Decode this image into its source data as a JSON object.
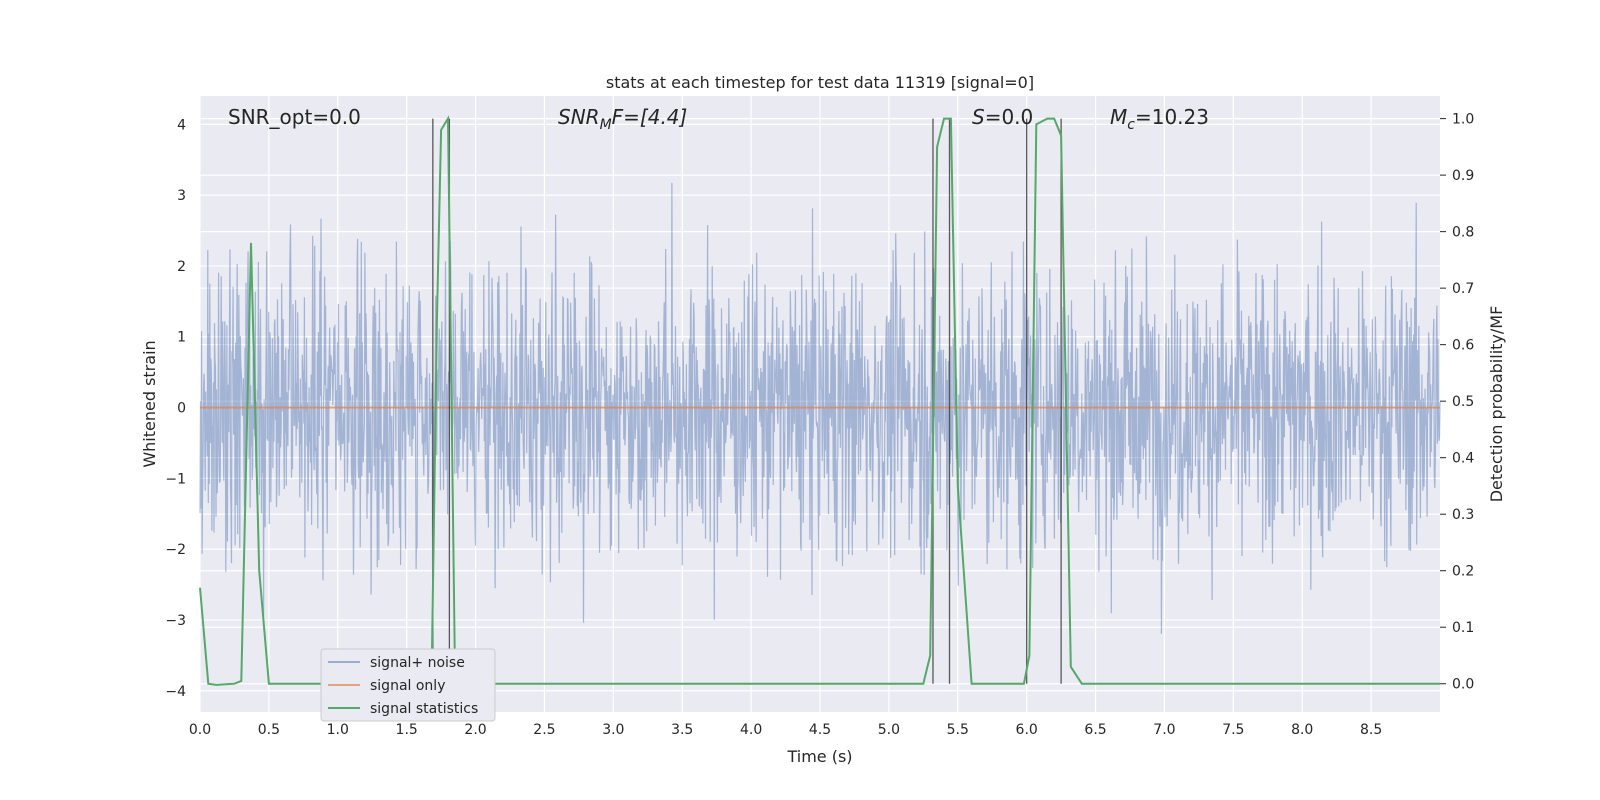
{
  "chart_data": {
    "type": "line",
    "title": "stats at each timestep for test data 11319 [signal=0]",
    "xlabel": "Time (s)",
    "ylabel_left": "Whitened strain",
    "ylabel_right": "Detection probability/MF",
    "xlim": [
      0.0,
      9.0
    ],
    "ylim_left": [
      -4.3,
      4.4
    ],
    "ylim_right": [
      -0.05,
      1.04
    ],
    "xticks": [
      "0.0",
      "0.5",
      "1.0",
      "1.5",
      "2.0",
      "2.5",
      "3.0",
      "3.5",
      "4.0",
      "4.5",
      "5.0",
      "5.5",
      "6.0",
      "6.5",
      "7.0",
      "7.5",
      "8.0",
      "8.5"
    ],
    "yticks_left": [
      "4",
      "3",
      "2",
      "1",
      "0",
      "−1",
      "−2",
      "−3",
      "−4"
    ],
    "yticks_right": [
      "1.0",
      "0.9",
      "0.8",
      "0.7",
      "0.6",
      "0.5",
      "0.4",
      "0.3",
      "0.2",
      "0.1",
      "0.0"
    ],
    "grid": true,
    "legend_position": "lower-left",
    "series": [
      {
        "name": "signal+ noise",
        "color": "#4c72b0",
        "axis": "left",
        "note": "dense whitened noise trace across full time range"
      },
      {
        "name": "signal only",
        "color": "#dd8452",
        "axis": "left",
        "x": [
          0.0,
          9.0
        ],
        "y": [
          0.0,
          0.0
        ]
      },
      {
        "name": "signal statistics",
        "color": "#55a868",
        "axis": "right",
        "x": [
          0.0,
          0.06,
          0.12,
          0.25,
          0.3,
          0.37,
          0.43,
          0.5,
          1.0,
          1.68,
          1.72,
          1.75,
          1.8,
          1.85,
          1.9,
          2.0,
          3.0,
          4.0,
          5.0,
          5.25,
          5.3,
          5.35,
          5.4,
          5.45,
          5.5,
          5.6,
          5.98,
          6.02,
          6.07,
          6.15,
          6.2,
          6.25,
          6.32,
          6.4,
          7.0,
          8.0,
          9.0
        ],
        "y": [
          0.17,
          0.0,
          -0.002,
          0.0,
          0.005,
          0.78,
          0.2,
          0.0,
          0.0,
          0.0,
          0.65,
          0.98,
          1.0,
          0.03,
          0.0,
          0.0,
          0.0,
          0.0,
          0.0,
          0.0,
          0.05,
          0.95,
          1.0,
          1.0,
          0.35,
          0.0,
          0.0,
          0.05,
          0.99,
          1.0,
          1.0,
          0.97,
          0.03,
          0.0,
          0.0,
          0.0,
          0.0
        ]
      }
    ],
    "vertical_lines_x": [
      1.69,
      1.81,
      5.32,
      5.44,
      6.0,
      6.25
    ],
    "annotations": {
      "snr_opt": "SNR_opt=0.0",
      "snr_mf_main": "SNR",
      "snr_mf_sub": "M",
      "snr_mf_tail": "F=[4.4]",
      "s_main": "S",
      "s_tail": "=0.0",
      "mc_main": "M",
      "mc_sub": "c",
      "mc_tail": "=10.23"
    },
    "colors": {
      "plot_bg": "#eaeaf2",
      "grid": "#ffffff",
      "noise": "#4c72b0",
      "signal": "#dd8452",
      "stats": "#55a868",
      "vline": "#333333"
    }
  }
}
